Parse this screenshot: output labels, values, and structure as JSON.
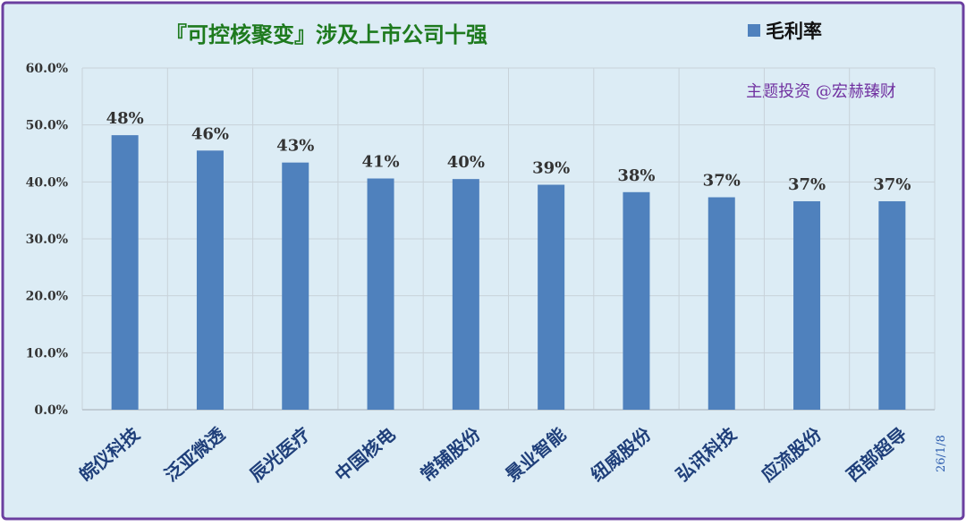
{
  "title": "『可控核聚变』涉及上市公司十强",
  "watermark": "主题投资 @宏赫臻财",
  "date_label": "26/1/8",
  "colors": {
    "background": "#dcecf5",
    "border": "#6b3fa0",
    "bar": "#4f81bd",
    "title": "#1e7a1e",
    "watermark": "#7030a0",
    "category_text": "#1f3f7a",
    "date_text": "#2f5fb0",
    "grid": "#c8d2d9"
  },
  "chart_data": {
    "type": "bar",
    "categories": [
      "皖仪科技",
      "泛亚微透",
      "辰光医疗",
      "中国核电",
      "常辅股份",
      "景业智能",
      "纽威股份",
      "弘讯科技",
      "应流股份",
      "西部超导"
    ],
    "series": [
      {
        "name": "毛利率",
        "values": [
          0.482,
          0.455,
          0.434,
          0.406,
          0.405,
          0.395,
          0.382,
          0.373,
          0.366,
          0.366
        ],
        "labels": [
          "48%",
          "46%",
          "43%",
          "41%",
          "40%",
          "39%",
          "38%",
          "37%",
          "37%",
          "37%"
        ]
      }
    ],
    "ylim": [
      0,
      0.6
    ],
    "yticks": [
      0,
      0.1,
      0.2,
      0.3,
      0.4,
      0.5,
      0.6
    ],
    "ytick_labels": [
      "0.0%",
      "10.0%",
      "20.0%",
      "30.0%",
      "40.0%",
      "50.0%",
      "60.0%"
    ],
    "grid": true,
    "legend_position": "top-right"
  }
}
